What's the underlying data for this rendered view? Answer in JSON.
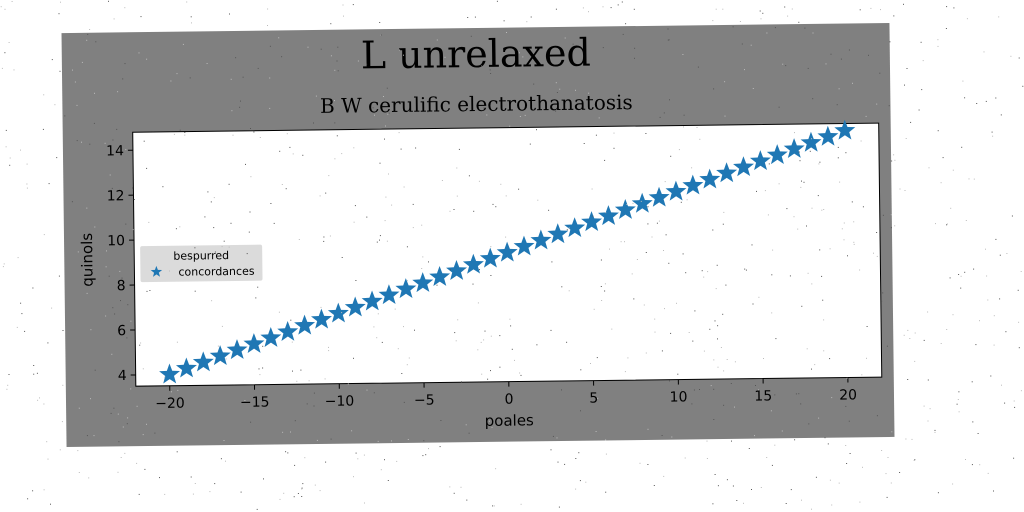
{
  "chart_data": {
    "type": "scatter",
    "title": "L unrelaxed",
    "subtitle": "B W cerulific electrothanatosis",
    "xlabel": "poales",
    "ylabel": "quinols",
    "xlim": [
      -22,
      22
    ],
    "ylim": [
      3.5,
      14.8
    ],
    "xticks": [
      -20,
      -15,
      -10,
      -5,
      0,
      5,
      10,
      15,
      20
    ],
    "yticks": [
      4,
      6,
      8,
      10,
      12,
      14
    ],
    "grid": false,
    "legend": {
      "title": "bespurred",
      "placement": "center-left",
      "entries": [
        "concordances"
      ]
    },
    "series": [
      {
        "name": "concordances",
        "marker": "star",
        "color": "#1f77b4",
        "x": [
          -20,
          -19,
          -18,
          -17,
          -16,
          -15,
          -14,
          -13,
          -12,
          -11,
          -10,
          -9,
          -8,
          -7,
          -6,
          -5,
          -4,
          -3,
          -2,
          -1,
          0,
          1,
          2,
          3,
          4,
          5,
          6,
          7,
          8,
          9,
          10,
          11,
          12,
          13,
          14,
          15,
          16,
          17,
          18,
          19,
          20
        ],
        "y": [
          4.0,
          4.26,
          4.52,
          4.79,
          5.05,
          5.31,
          5.57,
          5.83,
          6.1,
          6.36,
          6.62,
          6.88,
          7.14,
          7.41,
          7.67,
          7.93,
          8.19,
          8.45,
          8.72,
          8.98,
          9.24,
          9.5,
          9.76,
          10.03,
          10.29,
          10.55,
          10.81,
          11.07,
          11.34,
          11.6,
          11.86,
          12.12,
          12.38,
          12.65,
          12.91,
          13.17,
          13.43,
          13.69,
          13.96,
          14.22,
          14.48
        ]
      }
    ]
  },
  "colors": {
    "figure_background": "#808080",
    "plot_background": "#ffffff",
    "marker": "#1f77b4",
    "legend_background": "#d9d9d9"
  }
}
